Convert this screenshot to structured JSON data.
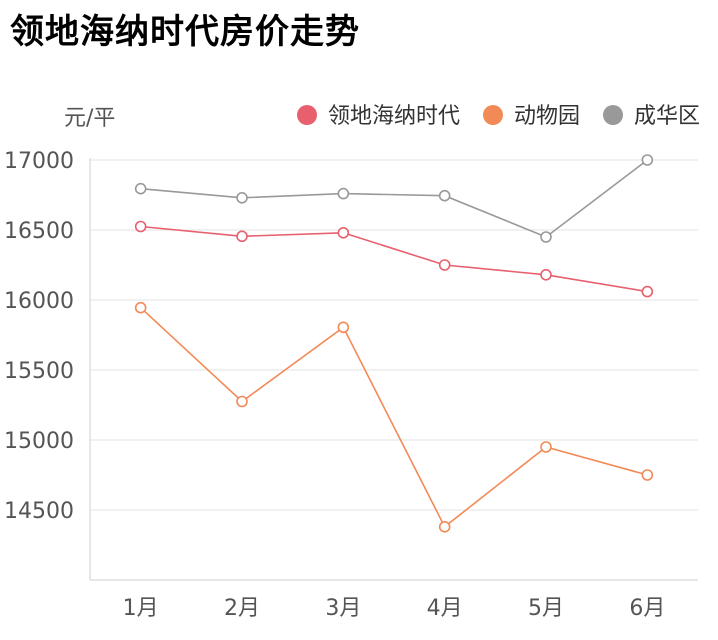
{
  "title": "领地海纳时代房价走势",
  "chart_data": {
    "type": "line",
    "title": "领地海纳时代房价走势",
    "ylabel": "元/平",
    "xlabel": "",
    "categories": [
      "1月",
      "2月",
      "3月",
      "4月",
      "5月",
      "6月"
    ],
    "ylim": [
      14000,
      17000
    ],
    "yticks": [
      17000,
      16500,
      16000,
      15500,
      15000,
      14500
    ],
    "grid": true,
    "legend_position": "top-right",
    "series": [
      {
        "name": "领地海纳时代",
        "color": "#e85f6e",
        "values": [
          16525,
          16455,
          16480,
          16250,
          16180,
          16060
        ]
      },
      {
        "name": "动物园",
        "color": "#f28a57",
        "values": [
          15945,
          15275,
          15805,
          14380,
          14950,
          14750
        ]
      },
      {
        "name": "成华区",
        "color": "#999999",
        "values": [
          16795,
          16730,
          16760,
          16745,
          16450,
          17000
        ]
      }
    ]
  }
}
